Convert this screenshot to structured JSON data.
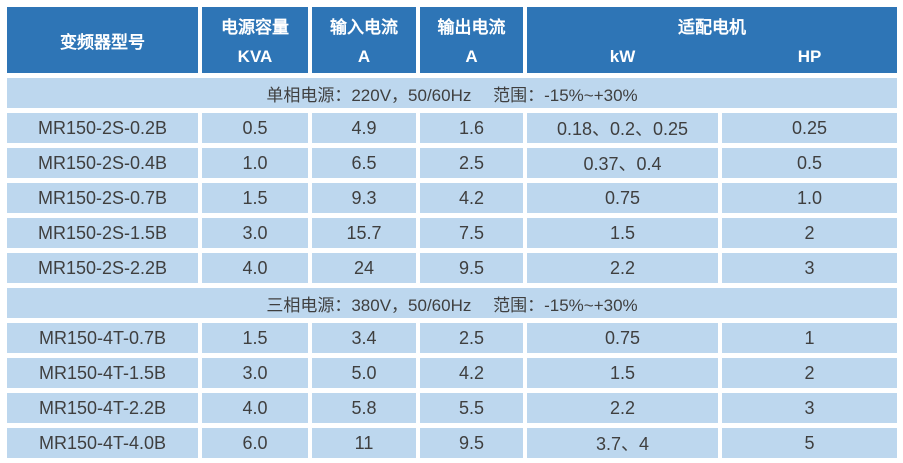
{
  "colors": {
    "header_bg": "#2E75B6",
    "row_bg": "#BDD7EE",
    "header_text": "#FFFFFF",
    "body_text": "#3F3F3F",
    "grid_line": "#FFFFFF"
  },
  "header": {
    "model": "变频器型号",
    "capacity": {
      "line1": "电源容量",
      "line2": "KVA"
    },
    "input": {
      "line1": "输入电流",
      "line2": "A"
    },
    "output": {
      "line1": "输出电流",
      "line2": "A"
    },
    "motor": {
      "title": "适配电机",
      "kw": "kW",
      "hp": "HP"
    }
  },
  "sections": [
    {
      "title": "单相电源：220V，50/60Hz　 范围：-15%~+30%",
      "rows": [
        {
          "model": "MR150-2S-0.2B",
          "kva": "0.5",
          "input_a": "4.9",
          "output_a": "1.6",
          "kw": "0.18、0.2、0.25",
          "hp": "0.25"
        },
        {
          "model": "MR150-2S-0.4B",
          "kva": "1.0",
          "input_a": "6.5",
          "output_a": "2.5",
          "kw": "0.37、0.4",
          "hp": "0.5"
        },
        {
          "model": "MR150-2S-0.7B",
          "kva": "1.5",
          "input_a": "9.3",
          "output_a": "4.2",
          "kw": "0.75",
          "hp": "1.0"
        },
        {
          "model": "MR150-2S-1.5B",
          "kva": "3.0",
          "input_a": "15.7",
          "output_a": "7.5",
          "kw": "1.5",
          "hp": "2"
        },
        {
          "model": "MR150-2S-2.2B",
          "kva": "4.0",
          "input_a": "24",
          "output_a": "9.5",
          "kw": "2.2",
          "hp": "3"
        }
      ]
    },
    {
      "title": "三相电源：380V，50/60Hz　 范围：-15%~+30%",
      "rows": [
        {
          "model": "MR150-4T-0.7B",
          "kva": "1.5",
          "input_a": "3.4",
          "output_a": "2.5",
          "kw": "0.75",
          "hp": "1"
        },
        {
          "model": "MR150-4T-1.5B",
          "kva": "3.0",
          "input_a": "5.0",
          "output_a": "4.2",
          "kw": "1.5",
          "hp": "2"
        },
        {
          "model": "MR150-4T-2.2B",
          "kva": "4.0",
          "input_a": "5.8",
          "output_a": "5.5",
          "kw": "2.2",
          "hp": "3"
        },
        {
          "model": "MR150-4T-4.0B",
          "kva": "6.0",
          "input_a": "11",
          "output_a": "9.5",
          "kw": "3.7、4",
          "hp": "5"
        }
      ]
    }
  ]
}
